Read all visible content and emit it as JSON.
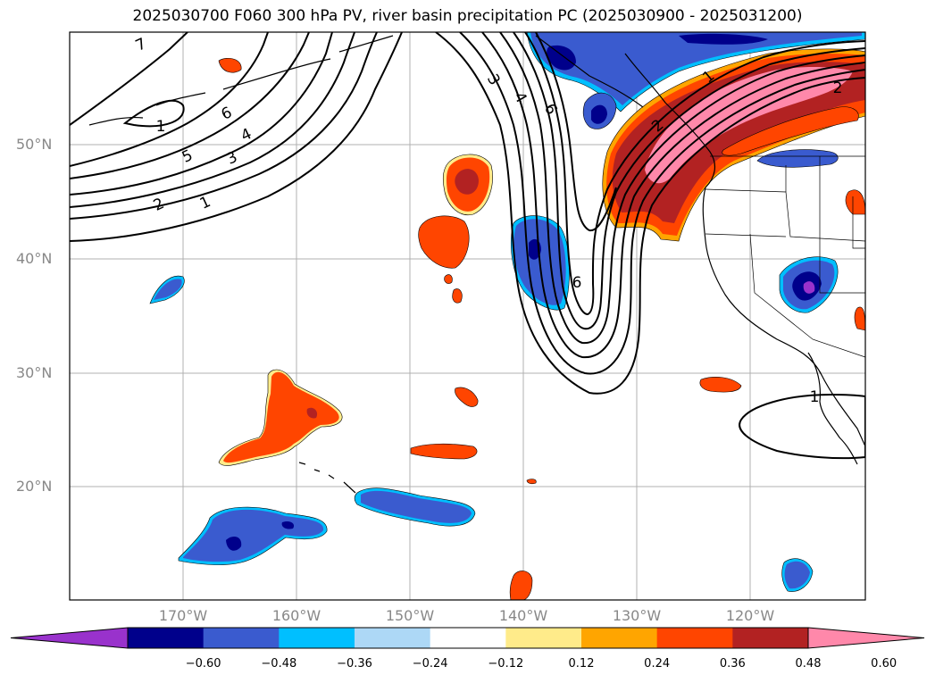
{
  "title": "2025030700 F060 300 hPa PV, river basin precipitation PC (2025030900 - 2025031200)",
  "lon_labels": [
    "170°W",
    "160°W",
    "150°W",
    "140°W",
    "130°W",
    "120°W"
  ],
  "lat_labels": [
    "50°N",
    "40°N",
    "30°N",
    "20°N"
  ],
  "contour_labels": [
    "1",
    "2",
    "3",
    "4",
    "5",
    "6",
    "7",
    "1",
    "2",
    "3",
    "4",
    "6",
    "6",
    "1",
    "2",
    "1"
  ],
  "colorbar": {
    "ticks": [
      "−0.60",
      "−0.48",
      "−0.36",
      "−0.24",
      "−0.12",
      "0.12",
      "0.24",
      "0.36",
      "0.48",
      "0.60"
    ],
    "colors": [
      "#9932cc",
      "#00008b",
      "#3a5bcf",
      "#00bfff",
      "#add8f6",
      "#ffffff",
      "#ffeb8a",
      "#ffa500",
      "#ff4500",
      "#b22222",
      "#ff88aa"
    ]
  },
  "fill_colors": {
    "violet": "#9932cc",
    "navy": "#00008b",
    "royal": "#3a5bcf",
    "sky": "#00bfff",
    "pale_blue": "#add8f6",
    "yellow": "#ffeb8a",
    "orange": "#ffa500",
    "orange_red": "#ff4500",
    "firebrick": "#b22222",
    "pink": "#ff88aa"
  }
}
